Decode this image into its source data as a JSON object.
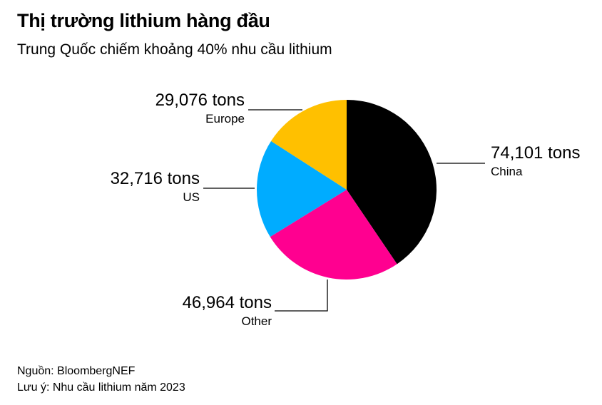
{
  "title": "Thị trường lithium hàng đầu",
  "subtitle": "Trung Quốc chiếm khoảng 40% nhu cầu lithium",
  "source": "Nguồn: BloombergNEF",
  "note": "Lưu ý: Nhu cầu lithium năm 2023",
  "chart_data": {
    "type": "pie",
    "slices": [
      {
        "label": "China",
        "value": 74101,
        "value_text": "74,101 tons",
        "color": "#000000"
      },
      {
        "label": "Other",
        "value": 46964,
        "value_text": "46,964 tons",
        "color": "#ff0090"
      },
      {
        "label": "US",
        "value": 32716,
        "value_text": "32,716 tons",
        "color": "#00acff"
      },
      {
        "label": "Europe",
        "value": 29076,
        "value_text": "29,076 tons",
        "color": "#ffc000"
      }
    ]
  }
}
